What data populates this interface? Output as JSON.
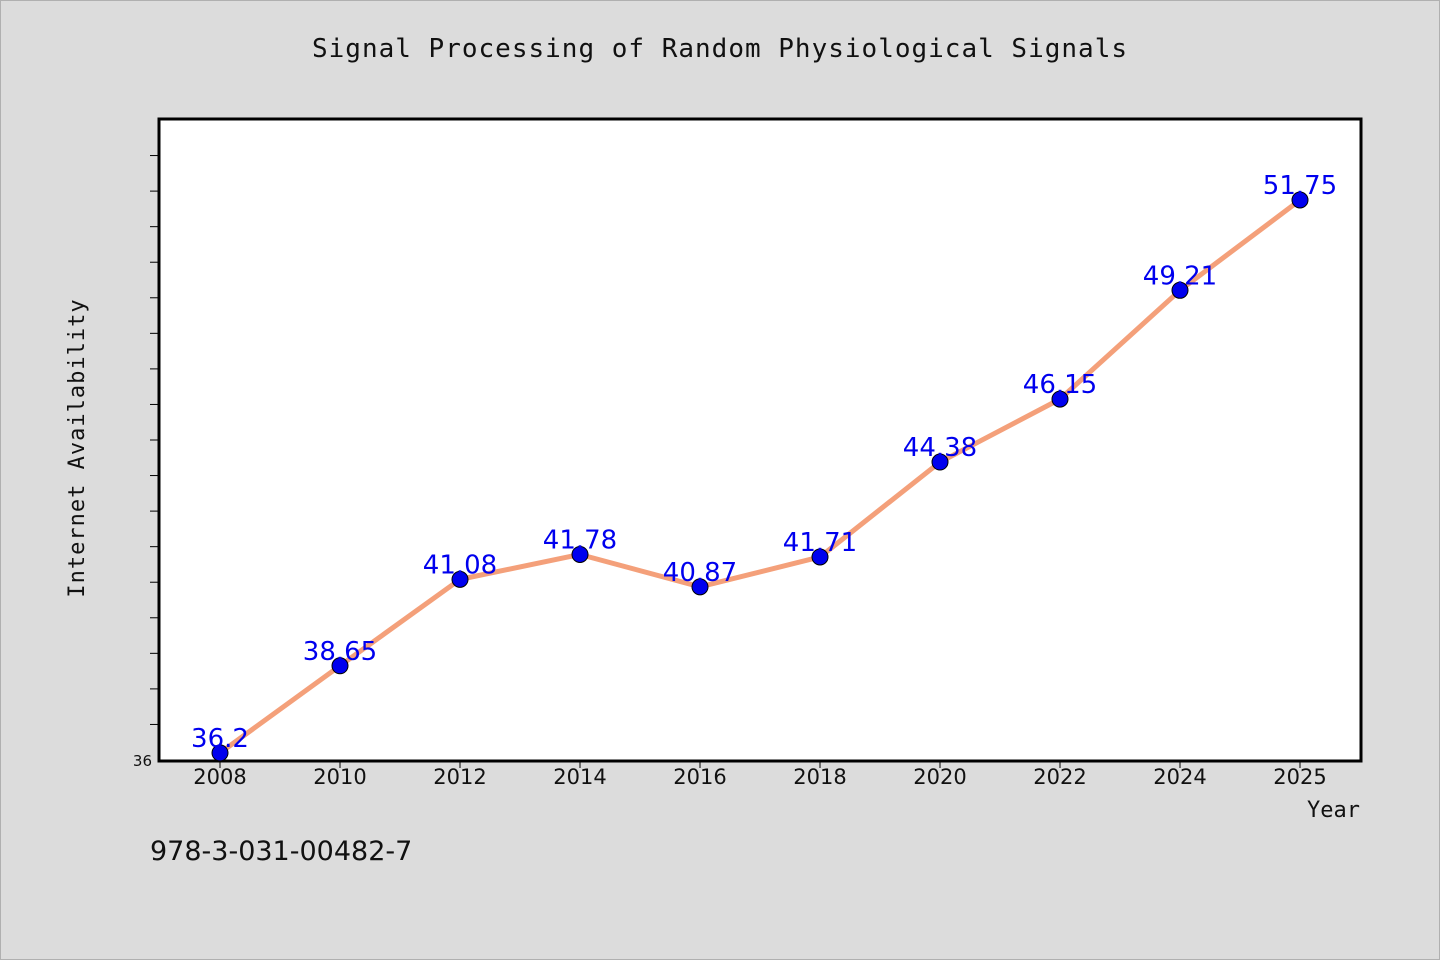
{
  "chart_data": {
    "type": "line",
    "title": "Signal Processing of Random Physiological Signals",
    "xlabel": "Year",
    "ylabel": "Internet Availability",
    "x": [
      "2008",
      "2010",
      "2012",
      "2014",
      "2016",
      "2018",
      "2020",
      "2022",
      "2024",
      "2025"
    ],
    "series": [
      {
        "values": [
          36.2,
          38.65,
          41.08,
          41.78,
          40.87,
          41.71,
          44.38,
          46.15,
          49.21,
          51.75
        ],
        "labels": [
          "36.2",
          "38.65",
          "41.08",
          "41.78",
          "40.87",
          "41.71",
          "44.38",
          "46.15",
          "49.21",
          "51.75"
        ],
        "line_color": "#f4a07a",
        "marker_color": "#0000ee",
        "label_color": "#0000ee"
      }
    ],
    "ylim": [
      36,
      54
    ],
    "y_tick_labels": [
      "36"
    ],
    "y_minor_tick_step": 1,
    "grid": false,
    "legend": "none",
    "background": "#ffffff"
  },
  "footer": {
    "isbn": "978-3-031-00482-7"
  }
}
